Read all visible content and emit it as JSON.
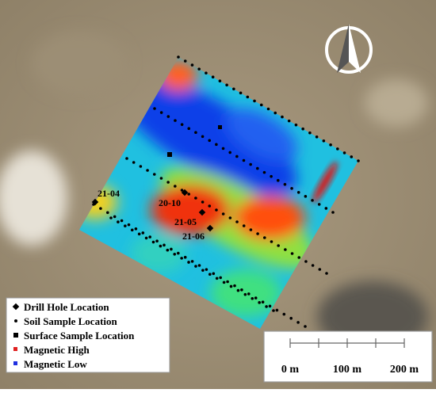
{
  "drill_holes": [
    {
      "label": "21-04"
    },
    {
      "label": "20-10"
    },
    {
      "label": "21-05"
    },
    {
      "label": "21-06"
    }
  ],
  "legend": {
    "items": [
      {
        "label": "Drill Hole Location"
      },
      {
        "label": "Soil Sample Location"
      },
      {
        "label": "Surface Sample Location"
      },
      {
        "label": "Magnetic High"
      },
      {
        "label": "Magnetic Low"
      }
    ]
  },
  "scale_bar": {
    "labels": [
      "0 m",
      "100 m",
      "200 m"
    ]
  }
}
